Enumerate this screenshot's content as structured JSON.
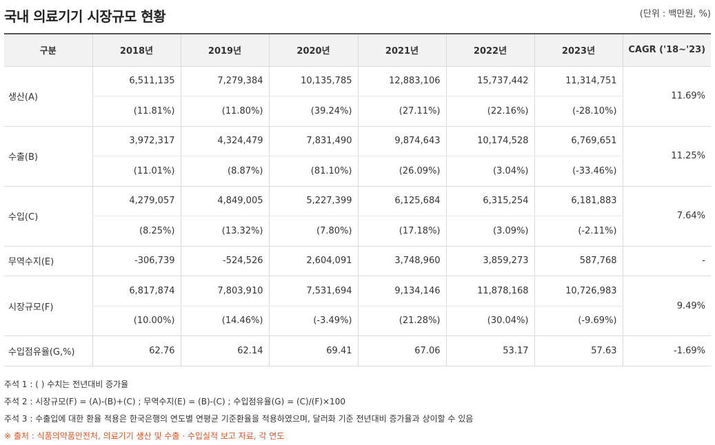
{
  "title": "국내 의료기기 시장규모 현황",
  "unit": "(단위 : 백만원, %)",
  "headers": [
    "구분",
    "2018년",
    "2019년",
    "2020년",
    "2021년",
    "2022년",
    "2023년",
    "CAGR ('18~'23)"
  ],
  "rows": [
    {
      "label": "생산(A)",
      "values": [
        "6,511,135",
        "7,279,384",
        "10,135,785",
        "12,883,106",
        "15,737,442",
        "11,314,751"
      ],
      "growth": [
        "(11.81%)",
        "(11.80%)",
        "(39.24%)",
        "(27.11%)",
        "(22.16%)",
        "(-28.10%)"
      ],
      "cagr": "11.69%"
    },
    {
      "label": "수출(B)",
      "values": [
        "3,972,317",
        "4,324,479",
        "7,831,490",
        "9,874,643",
        "10,174,528",
        "6,769,651"
      ],
      "growth": [
        "(11.01%)",
        "(8.87%)",
        "(81.10%)",
        "(26.09%)",
        "(3.04%)",
        "(-33.46%)"
      ],
      "cagr": "11.25%"
    },
    {
      "label": "수입(C)",
      "values": [
        "4,279,057",
        "4,849,005",
        "5,227,399",
        "6,125,684",
        "6,315,254",
        "6,181,883"
      ],
      "growth": [
        "(8.25%)",
        "(13.32%)",
        "(7.80%)",
        "(17.18%)",
        "(3.09%)",
        "(-2.11%)"
      ],
      "cagr": "7.64%"
    },
    {
      "label": "무역수지(E)",
      "values": [
        "-306,739",
        "-524,526",
        "2,604,091",
        "3,748,960",
        "3,859,273",
        "587,768"
      ],
      "cagr": "-"
    },
    {
      "label": "시장규모(F)",
      "values": [
        "6,817,874",
        "7,803,910",
        "7,531,694",
        "9,134,146",
        "11,878,168",
        "10,726,983"
      ],
      "growth": [
        "(10.00%)",
        "(14.46%)",
        "(-3.49%)",
        "(21.28%)",
        "(30.04%)",
        "(-9.69%)"
      ],
      "cagr": "9.49%"
    },
    {
      "label": "수입점유율(G,%)",
      "values": [
        "62.76",
        "62.14",
        "69.41",
        "67.06",
        "53.17",
        "57.63"
      ],
      "cagr": "-1.69%"
    }
  ],
  "notes": [
    "주석 1 : ( ) 수치는 전년대비 증가율",
    "주석 2 : 시장규모(F) = (A)-(B)+(C) ; 무역수지(E) = (B)-(C) ; 수입점유율(G) = (C)/(F)×100",
    "주석 3 : 수출입에 대한 환율 적용은 한국은행의 연도별 연평균 기준환율을 적용하였으며, 달러화 기준 전년대비 증가율과 상이할 수 있음"
  ],
  "source": "※ 출처 : 식품의약품안전처, 의료기기 생산 및 수출 · 수입실적 보고 자료, 각 연도"
}
